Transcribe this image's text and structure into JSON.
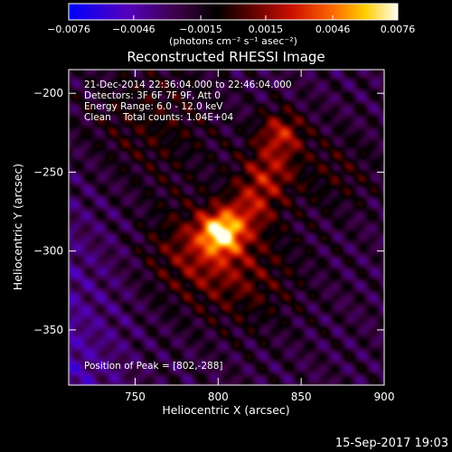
{
  "chart_data": {
    "type": "heatmap",
    "title": "Reconstructed RHESSI Image",
    "xlabel": "Heliocentric X (arcsec)",
    "ylabel": "Heliocentric Y (arcsec)",
    "xlim": [
      710,
      900
    ],
    "ylim": [
      -385,
      -185
    ],
    "x_ticks": [
      750,
      800,
      850,
      900
    ],
    "y_ticks": [
      -200,
      -250,
      -300,
      -350
    ],
    "x_tick_labels": [
      "750",
      "800",
      "850",
      "900"
    ],
    "y_tick_labels": [
      "−200",
      "−250",
      "−300",
      "−350"
    ],
    "colorbar": {
      "range": [
        -0.0076,
        0.0076
      ],
      "ticks": [
        -0.0076,
        -0.0046,
        -0.0015,
        0.0015,
        0.0046,
        0.0076
      ],
      "tick_labels": [
        "−0.0076",
        "−0.0046",
        "−0.0015",
        "0.0015",
        "0.0046",
        "0.0076"
      ],
      "unit_label": "(photons cm⁻² s⁻¹ asec⁻²)"
    },
    "annotations": {
      "time": "21-Dec-2014 22:36:04.000 to 22:46:04.000",
      "detectors": "Detectors: 3F 6F 7F 9F, Att 0",
      "energy": "Energy Range: 6.0 - 12.0 keV",
      "clean": "Clean    Total counts: 1.04E+04",
      "peak": "Position of Peak = [802,-288]"
    },
    "peak": {
      "x": 802,
      "y": -288
    },
    "sources": [
      {
        "x": 802,
        "y": -288,
        "peak": 0.0076,
        "sigma": 9
      },
      {
        "x": 838,
        "y": -225,
        "peak": 0.0042,
        "sigma": 10
      },
      {
        "x": 830,
        "y": -250,
        "peak": 0.0036,
        "sigma": 12
      },
      {
        "x": 820,
        "y": -272,
        "peak": 0.0032,
        "sigma": 11
      },
      {
        "x": 785,
        "y": -300,
        "peak": 0.0028,
        "sigma": 20
      },
      {
        "x": 815,
        "y": -315,
        "peak": 0.0024,
        "sigma": 24
      },
      {
        "x": 760,
        "y": -220,
        "peak": 0.0018,
        "sigma": 28
      },
      {
        "x": 870,
        "y": -250,
        "peak": 0.0016,
        "sigma": 18
      }
    ],
    "background": -0.0022,
    "grid": false,
    "colormap": "rainbow-blue-to-white",
    "colors": [
      "#0000ff",
      "#6600aa",
      "#330033",
      "#000000",
      "#990000",
      "#ff3300",
      "#ff9900",
      "#ffff66",
      "#ffffff"
    ]
  },
  "footer": {
    "timestamp": "15-Sep-2017 19:03"
  }
}
